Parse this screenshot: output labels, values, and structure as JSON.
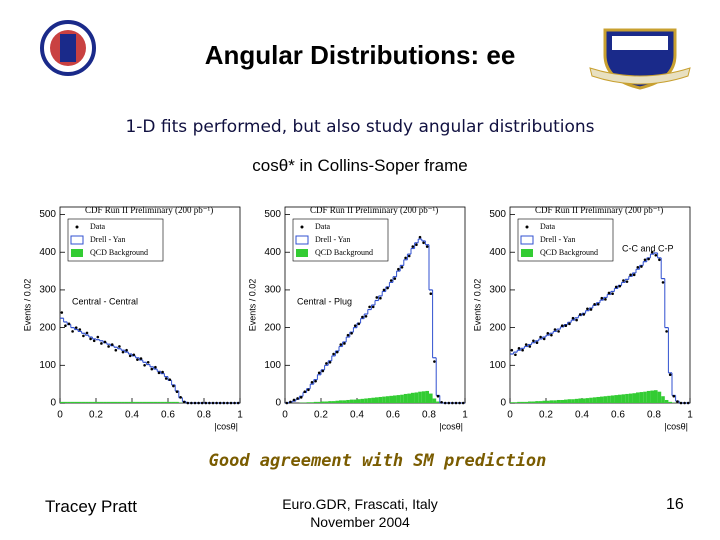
{
  "header": {
    "title": "Angular Distributions: ee"
  },
  "body": {
    "line1": "1-D fits performed, but also study angular distributions",
    "line2": "cosθ* in Collins-Soper frame",
    "conclusion": "Good agreement with SM prediction"
  },
  "footer": {
    "author": "Tracey Pratt",
    "venue": "Euro.GDR, Frascati, Italy",
    "date": "November 2004",
    "page": "16"
  },
  "chart_data": [
    {
      "type": "histogram",
      "title": "CDF Run II Preliminary (200 pb⁻¹)",
      "ylabel": "Events / 0.02",
      "xlabel": "|cosθ|",
      "annotation": "Central - Central",
      "bins": [
        0,
        0.02,
        0.04,
        0.06,
        0.08,
        0.1,
        0.12,
        0.14,
        0.16,
        0.18,
        0.2,
        0.22,
        0.24,
        0.26,
        0.28,
        0.3,
        0.32,
        0.34,
        0.36,
        0.38,
        0.4,
        0.42,
        0.44,
        0.46,
        0.48,
        0.5,
        0.52,
        0.54,
        0.56,
        0.58,
        0.6,
        0.62,
        0.64,
        0.66,
        0.68,
        0.7,
        0.72,
        0.74,
        0.76,
        0.78,
        0.8,
        0.82,
        0.84,
        0.86,
        0.88,
        0.9,
        0.92,
        0.94,
        0.96,
        0.98,
        1
      ],
      "xlim": [
        0,
        1
      ],
      "xticks": [
        0,
        0.2,
        0.4,
        0.6,
        0.8,
        1
      ],
      "ylim": [
        0,
        520
      ],
      "yticks": [
        0,
        100,
        200,
        300,
        400,
        500
      ],
      "series": [
        {
          "name": "Data",
          "color": "#000000",
          "values": [
            240,
            205,
            210,
            190,
            200,
            195,
            178,
            186,
            170,
            165,
            175,
            158,
            162,
            150,
            155,
            140,
            150,
            135,
            140,
            125,
            128,
            115,
            118,
            100,
            108,
            90,
            95,
            80,
            82,
            65,
            62,
            45,
            30,
            15,
            3,
            0,
            0,
            0,
            0,
            0,
            0,
            0,
            0,
            0,
            0,
            0,
            0,
            0,
            0,
            0
          ]
        },
        {
          "name": "Drell - Yan",
          "color": "#3050d0",
          "values": [
            225,
            215,
            208,
            200,
            195,
            190,
            185,
            180,
            175,
            170,
            168,
            165,
            160,
            156,
            152,
            148,
            144,
            140,
            135,
            130,
            125,
            120,
            114,
            108,
            102,
            96,
            90,
            84,
            78,
            70,
            60,
            48,
            32,
            14,
            4,
            0,
            0,
            0,
            0,
            0,
            0,
            0,
            0,
            0,
            0,
            0,
            0,
            0,
            0,
            0
          ]
        },
        {
          "name": "QCD Background",
          "color": "#33cc33",
          "values": [
            3,
            3,
            3,
            3,
            3,
            3,
            3,
            3,
            3,
            3,
            3,
            3,
            3,
            3,
            3,
            3,
            3,
            3,
            3,
            3,
            3,
            3,
            3,
            3,
            3,
            3,
            3,
            3,
            3,
            3,
            3,
            3,
            3,
            1,
            0,
            0,
            0,
            0,
            0,
            0,
            0,
            0,
            0,
            0,
            0,
            0,
            0,
            0,
            0,
            0
          ]
        }
      ]
    },
    {
      "type": "histogram",
      "title": "CDF Run II Preliminary (200 pb⁻¹)",
      "ylabel": "Events / 0.02",
      "xlabel": "|cosθ|",
      "annotation": "Central - Plug",
      "bins": [
        0,
        0.02,
        0.04,
        0.06,
        0.08,
        0.1,
        0.12,
        0.14,
        0.16,
        0.18,
        0.2,
        0.22,
        0.24,
        0.26,
        0.28,
        0.3,
        0.32,
        0.34,
        0.36,
        0.38,
        0.4,
        0.42,
        0.44,
        0.46,
        0.48,
        0.5,
        0.52,
        0.54,
        0.56,
        0.58,
        0.6,
        0.62,
        0.64,
        0.66,
        0.68,
        0.7,
        0.72,
        0.74,
        0.76,
        0.78,
        0.8,
        0.82,
        0.84,
        0.86,
        0.88,
        0.9,
        0.92,
        0.94,
        0.96,
        0.98,
        1
      ],
      "xlim": [
        0,
        1
      ],
      "xticks": [
        0,
        0.2,
        0.4,
        0.6,
        0.8,
        1
      ],
      "ylim": [
        0,
        520
      ],
      "yticks": [
        0,
        100,
        200,
        300,
        400,
        500
      ],
      "series": [
        {
          "name": "Data",
          "color": "#000000",
          "values": [
            0,
            3,
            8,
            12,
            15,
            30,
            35,
            55,
            58,
            80,
            85,
            105,
            108,
            130,
            135,
            155,
            158,
            180,
            185,
            205,
            210,
            228,
            230,
            255,
            255,
            280,
            278,
            300,
            305,
            325,
            330,
            355,
            360,
            385,
            390,
            415,
            420,
            440,
            425,
            415,
            290,
            110,
            18,
            2,
            0,
            0,
            0,
            0,
            0,
            0
          ]
        },
        {
          "name": "Drell - Yan",
          "color": "#3050d0",
          "values": [
            0,
            2,
            5,
            10,
            18,
            28,
            38,
            50,
            62,
            75,
            88,
            100,
            112,
            125,
            138,
            150,
            162,
            175,
            188,
            200,
            212,
            224,
            236,
            248,
            260,
            272,
            284,
            296,
            308,
            320,
            335,
            350,
            365,
            380,
            395,
            410,
            425,
            435,
            430,
            420,
            300,
            120,
            20,
            0,
            0,
            0,
            0,
            0,
            0,
            0
          ]
        },
        {
          "name": "QCD Background",
          "color": "#33cc33",
          "values": [
            0,
            0,
            0,
            0,
            1,
            1,
            2,
            2,
            3,
            3,
            4,
            4,
            5,
            5,
            6,
            7,
            7,
            8,
            9,
            9,
            10,
            11,
            12,
            13,
            14,
            15,
            16,
            17,
            18,
            19,
            20,
            21,
            22,
            24,
            25,
            27,
            28,
            30,
            31,
            32,
            25,
            12,
            4,
            1,
            0,
            0,
            0,
            0,
            0,
            0
          ]
        }
      ]
    },
    {
      "type": "histogram",
      "title": "CDF Run II Preliminary (200 pb⁻¹)",
      "ylabel": "Events / 0.02",
      "xlabel": "|cosθ|",
      "annotation": "C-C and C-P",
      "bins": [
        0,
        0.02,
        0.04,
        0.06,
        0.08,
        0.1,
        0.12,
        0.14,
        0.16,
        0.18,
        0.2,
        0.22,
        0.24,
        0.26,
        0.28,
        0.3,
        0.32,
        0.34,
        0.36,
        0.38,
        0.4,
        0.42,
        0.44,
        0.46,
        0.48,
        0.5,
        0.52,
        0.54,
        0.56,
        0.58,
        0.6,
        0.62,
        0.64,
        0.66,
        0.68,
        0.7,
        0.72,
        0.74,
        0.76,
        0.78,
        0.8,
        0.82,
        0.84,
        0.86,
        0.88,
        0.9,
        0.92,
        0.94,
        0.96,
        0.98,
        1
      ],
      "xlim": [
        0,
        1
      ],
      "xticks": [
        0,
        0.2,
        0.4,
        0.6,
        0.8,
        1
      ],
      "ylim": [
        0,
        520
      ],
      "yticks": [
        0,
        100,
        200,
        300,
        400,
        500
      ],
      "series": [
        {
          "name": "Data",
          "color": "#000000",
          "values": [
            140,
            128,
            145,
            140,
            155,
            150,
            165,
            160,
            175,
            170,
            185,
            180,
            195,
            190,
            205,
            205,
            210,
            225,
            220,
            235,
            235,
            250,
            248,
            262,
            262,
            278,
            275,
            292,
            290,
            308,
            310,
            325,
            322,
            340,
            340,
            360,
            362,
            380,
            382,
            400,
            392,
            380,
            320,
            190,
            75,
            18,
            4,
            0,
            0,
            0
          ]
        },
        {
          "name": "Drell - Yan",
          "color": "#3050d0",
          "values": [
            130,
            135,
            140,
            145,
            150,
            155,
            160,
            165,
            170,
            175,
            180,
            185,
            190,
            196,
            202,
            208,
            214,
            220,
            226,
            232,
            238,
            245,
            252,
            259,
            266,
            273,
            280,
            288,
            296,
            304,
            312,
            320,
            328,
            336,
            345,
            355,
            365,
            375,
            385,
            395,
            398,
            385,
            330,
            200,
            80,
            20,
            5,
            0,
            0,
            0
          ]
        },
        {
          "name": "QCD Background",
          "color": "#33cc33",
          "values": [
            2,
            2,
            3,
            3,
            3,
            4,
            4,
            5,
            5,
            6,
            6,
            7,
            7,
            8,
            8,
            9,
            10,
            10,
            11,
            12,
            12,
            13,
            14,
            15,
            16,
            17,
            18,
            19,
            20,
            21,
            22,
            23,
            24,
            25,
            26,
            28,
            29,
            30,
            32,
            33,
            34,
            30,
            18,
            8,
            3,
            1,
            0,
            0,
            0,
            0
          ]
        }
      ]
    }
  ]
}
